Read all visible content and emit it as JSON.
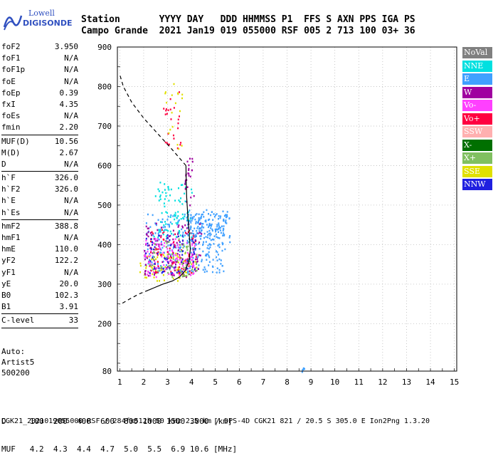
{
  "logo": {
    "line1": "Lowell",
    "line2": "DIGISONDE"
  },
  "header": {
    "labels": "Station       YYYY DAY   DDD HHMMSS P1  FFS S AXN PPS IGA PS",
    "values": "Campo Grande  2021 Jan19 019 055000 RSF 005 2 713 100 03+ 36"
  },
  "params": {
    "group1": [
      {
        "name": "foF2",
        "value": "3.950"
      },
      {
        "name": "foF1",
        "value": "N/A"
      },
      {
        "name": "foF1p",
        "value": "N/A"
      },
      {
        "name": "foE",
        "value": "N/A"
      },
      {
        "name": "foEp",
        "value": "0.39"
      },
      {
        "name": "fxI",
        "value": "4.35"
      },
      {
        "name": "foEs",
        "value": "N/A"
      },
      {
        "name": "fmin",
        "value": "2.20"
      }
    ],
    "group2": [
      {
        "name": "MUF(D)",
        "value": "10.56"
      },
      {
        "name": "M(D)",
        "value": "2.67"
      },
      {
        "name": "D",
        "value": "N/A"
      }
    ],
    "group3": [
      {
        "name": "h`F",
        "value": "326.0"
      },
      {
        "name": "h`F2",
        "value": "326.0"
      },
      {
        "name": "h`E",
        "value": "N/A"
      },
      {
        "name": "h`Es",
        "value": "N/A"
      }
    ],
    "group4": [
      {
        "name": "hmF2",
        "value": "388.8"
      },
      {
        "name": "hmF1",
        "value": "N/A"
      },
      {
        "name": "hmE",
        "value": "110.0"
      },
      {
        "name": "yF2",
        "value": "122.2"
      },
      {
        "name": "yF1",
        "value": "N/A"
      },
      {
        "name": "yE",
        "value": "20.0"
      },
      {
        "name": "B0",
        "value": "102.3"
      },
      {
        "name": "B1",
        "value": "3.91"
      }
    ],
    "group5": [
      {
        "name": "C-level",
        "value": "33"
      }
    ]
  },
  "auto": {
    "line1": "Auto:",
    "line2": "Artist5",
    "line3": "500200"
  },
  "legend": [
    {
      "label": "NoVal",
      "color": "#808080"
    },
    {
      "label": "NNE",
      "color": "#00e0e0"
    },
    {
      "label": "E",
      "color": "#40a0ff"
    },
    {
      "label": "W",
      "color": "#a000a0"
    },
    {
      "label": "Vo-",
      "color": "#ff40ff"
    },
    {
      "label": "Vo+",
      "color": "#ff0040"
    },
    {
      "label": "SSW",
      "color": "#ffb0b0"
    },
    {
      "label": "X-",
      "color": "#007000"
    },
    {
      "label": "X+",
      "color": "#80c060"
    },
    {
      "label": "SSE",
      "color": "#e0e000"
    },
    {
      "label": "NNW",
      "color": "#2020e0"
    }
  ],
  "muf_table": {
    "row1": "D     100  200  400  600  800 1000 1500 3000 [km]",
    "row2": "MUF   4.2  4.3  4.4  4.7  5.0  5.5  6.9 10.6 [MHz]"
  },
  "footer": "CGK21_2021019055000.RSF / 284fx512h 50 kHz 2.5 km / DPS-4D CGK21 821 / 20.5 S 305.0 E Ion2Png 1.3.20",
  "chart_data": {
    "type": "scatter",
    "x_ticks": [
      "1",
      "2",
      "3",
      "4",
      "5",
      "6",
      "7",
      "8",
      "9",
      "10",
      "11",
      "12",
      "13",
      "14",
      "15"
    ],
    "y_ticks": [
      "80",
      "200",
      "300",
      "400",
      "500",
      "600",
      "700",
      "800",
      "900"
    ],
    "xlim": [
      0.9,
      15.1
    ],
    "ylim": [
      80,
      900
    ],
    "grid": true,
    "legend_position": "right",
    "profile_solid": [
      [
        3.95,
        388.8
      ],
      [
        3.9,
        360
      ],
      [
        3.75,
        335
      ],
      [
        3.5,
        318
      ],
      [
        3.2,
        308
      ],
      [
        2.8,
        300
      ],
      [
        2.4,
        290
      ],
      [
        2.2,
        285
      ]
    ],
    "profile_solid_upper": [
      [
        3.95,
        388.8
      ],
      [
        3.9,
        430
      ],
      [
        3.85,
        470
      ],
      [
        3.8,
        520
      ],
      [
        3.78,
        560
      ],
      [
        3.77,
        600
      ]
    ],
    "profile_dashed_lower": [
      [
        2.2,
        285
      ],
      [
        1.8,
        275
      ],
      [
        1.4,
        262
      ],
      [
        1.0,
        248
      ]
    ],
    "profile_dashed_upper": [
      [
        3.77,
        600
      ],
      [
        3.2,
        640
      ],
      [
        2.6,
        680
      ],
      [
        2.0,
        720
      ],
      [
        1.5,
        760
      ],
      [
        1.15,
        800
      ],
      [
        1.0,
        830
      ]
    ],
    "echo_clusters": [
      {
        "fmin": 1.8,
        "fmax": 4.2,
        "hmin": 310,
        "hmax": 380,
        "color": "#e0e000",
        "count": 90
      },
      {
        "fmin": 2.0,
        "fmax": 5.4,
        "hmin": 330,
        "hmax": 480,
        "color": "#40a0ff",
        "count": 260
      },
      {
        "fmin": 2.0,
        "fmax": 4.4,
        "hmin": 320,
        "hmax": 460,
        "color": "#a000a0",
        "count": 120
      },
      {
        "fmin": 2.0,
        "fmax": 4.2,
        "hmin": 320,
        "hmax": 420,
        "color": "#ff40ff",
        "count": 110
      },
      {
        "fmin": 2.2,
        "fmax": 4.2,
        "hmin": 330,
        "hmax": 440,
        "color": "#ff0040",
        "count": 80
      },
      {
        "fmin": 2.2,
        "fmax": 4.2,
        "hmin": 320,
        "hmax": 420,
        "color": "#80c060",
        "count": 60
      },
      {
        "fmin": 2.4,
        "fmax": 4.0,
        "hmin": 420,
        "hmax": 560,
        "color": "#00e0e0",
        "count": 90
      },
      {
        "fmin": 2.0,
        "fmax": 4.2,
        "hmin": 330,
        "hmax": 430,
        "color": "#2020e0",
        "count": 60
      },
      {
        "fmin": 3.8,
        "fmax": 5.6,
        "hmin": 400,
        "hmax": 490,
        "color": "#40a0ff",
        "count": 120
      },
      {
        "fmin": 2.8,
        "fmax": 3.6,
        "hmin": 640,
        "hmax": 810,
        "color": "#ff0040",
        "count": 25
      },
      {
        "fmin": 2.8,
        "fmax": 3.6,
        "hmin": 640,
        "hmax": 810,
        "color": "#e0e000",
        "count": 18
      },
      {
        "fmin": 3.7,
        "fmax": 4.1,
        "hmin": 500,
        "hmax": 620,
        "color": "#a000a0",
        "count": 25
      },
      {
        "fmin": 8.6,
        "fmax": 8.7,
        "hmin": 80,
        "hmax": 90,
        "color": "#40a0ff",
        "count": 6
      }
    ]
  }
}
